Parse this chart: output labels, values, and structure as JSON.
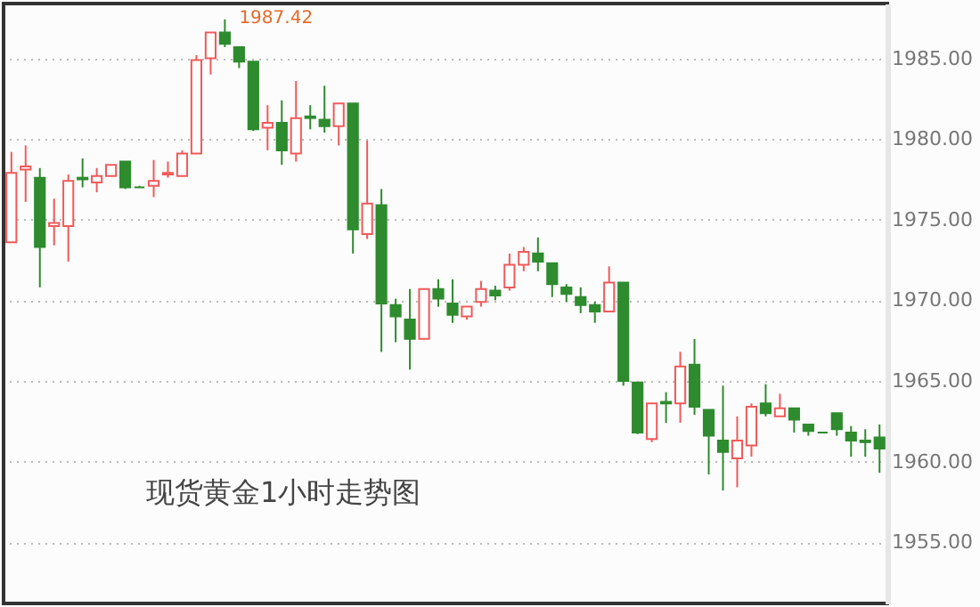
{
  "chart_data": {
    "type": "candlestick",
    "title": "现货黄金1小时走势图",
    "categories": [
      null,
      null,
      null,
      null,
      null,
      null,
      null,
      null,
      null,
      null,
      null,
      null,
      null,
      null,
      null,
      null,
      null,
      null,
      null,
      null,
      null,
      null,
      null,
      null,
      null,
      null,
      null,
      null,
      null,
      null,
      null,
      null,
      null,
      null,
      null,
      null,
      null,
      null,
      null,
      null,
      null,
      null,
      null,
      null,
      null,
      null,
      null,
      null,
      null,
      null,
      null,
      null,
      null,
      null,
      null,
      null,
      null,
      null,
      null,
      null,
      null,
      null
    ],
    "ohlc": [
      [
        1973.6,
        1979.2,
        1973.6,
        1977.9
      ],
      [
        1978.1,
        1979.6,
        1976.1,
        1978.3
      ],
      [
        1977.6,
        1978.2,
        1970.8,
        1973.3
      ],
      [
        1974.6,
        1976.3,
        1973.4,
        1974.8
      ],
      [
        1974.6,
        1977.8,
        1972.4,
        1977.4
      ],
      [
        1977.6,
        1978.8,
        1977.0,
        1977.5
      ],
      [
        1977.3,
        1978.2,
        1976.7,
        1977.7
      ],
      [
        1977.7,
        1978.4,
        1977.7,
        1978.4
      ],
      [
        1978.6,
        1978.6,
        1976.9,
        1977.0
      ],
      [
        1977.0,
        1977.1,
        1977.0,
        1977.0
      ],
      [
        1977.1,
        1978.7,
        1976.4,
        1977.4
      ],
      [
        1977.8,
        1978.6,
        1977.6,
        1977.9
      ],
      [
        1977.7,
        1979.3,
        1977.7,
        1979.1
      ],
      [
        1979.1,
        1985.2,
        1979.1,
        1984.9
      ],
      [
        1985.0,
        1986.6,
        1984.0,
        1986.6
      ],
      [
        1986.6,
        1987.42,
        1985.7,
        1985.9
      ],
      [
        1985.7,
        1985.7,
        1984.4,
        1984.8
      ],
      [
        1984.8,
        1984.8,
        1980.5,
        1980.6
      ],
      [
        1980.7,
        1982.1,
        1979.3,
        1981.0
      ],
      [
        1981.0,
        1982.4,
        1978.4,
        1979.3
      ],
      [
        1979.1,
        1983.6,
        1978.6,
        1981.3
      ],
      [
        1981.4,
        1982.1,
        1980.6,
        1981.3
      ],
      [
        1981.2,
        1983.3,
        1980.4,
        1980.8
      ],
      [
        1980.8,
        1982.2,
        1979.6,
        1982.2
      ],
      [
        1982.2,
        1982.2,
        1972.9,
        1974.4
      ],
      [
        1974.1,
        1979.9,
        1973.8,
        1976.0
      ],
      [
        1975.9,
        1976.9,
        1966.8,
        1969.8
      ],
      [
        1969.7,
        1970.1,
        1967.4,
        1969.0
      ],
      [
        1968.8,
        1970.7,
        1965.7,
        1967.6
      ],
      [
        1967.6,
        1970.7,
        1967.6,
        1970.7
      ],
      [
        1970.7,
        1971.3,
        1969.6,
        1970.1
      ],
      [
        1969.8,
        1971.3,
        1968.6,
        1969.1
      ],
      [
        1969.0,
        1969.6,
        1968.8,
        1969.6
      ],
      [
        1969.9,
        1971.2,
        1969.6,
        1970.7
      ],
      [
        1970.6,
        1970.9,
        1970.0,
        1970.3
      ],
      [
        1970.8,
        1972.9,
        1970.6,
        1972.2
      ],
      [
        1972.2,
        1973.3,
        1971.8,
        1973.0
      ],
      [
        1972.9,
        1973.9,
        1971.8,
        1972.4
      ],
      [
        1972.3,
        1972.3,
        1970.2,
        1971.0
      ],
      [
        1970.8,
        1971.0,
        1969.9,
        1970.4
      ],
      [
        1970.2,
        1970.8,
        1969.2,
        1969.7
      ],
      [
        1969.7,
        1969.9,
        1968.6,
        1969.3
      ],
      [
        1969.3,
        1972.1,
        1969.3,
        1971.1
      ],
      [
        1971.1,
        1971.1,
        1964.7,
        1965.0
      ],
      [
        1964.9,
        1964.9,
        1961.7,
        1961.8
      ],
      [
        1961.4,
        1963.6,
        1961.2,
        1963.6
      ],
      [
        1963.7,
        1964.3,
        1962.4,
        1963.6
      ],
      [
        1963.6,
        1966.8,
        1962.4,
        1965.9
      ],
      [
        1966.0,
        1967.6,
        1962.9,
        1963.4
      ],
      [
        1963.2,
        1963.2,
        1959.2,
        1961.6
      ],
      [
        1961.3,
        1964.7,
        1958.2,
        1960.6
      ],
      [
        1960.2,
        1962.8,
        1958.4,
        1961.3
      ],
      [
        1961.0,
        1963.6,
        1960.3,
        1963.4
      ],
      [
        1963.6,
        1964.8,
        1962.8,
        1963.0
      ],
      [
        1962.8,
        1964.2,
        1962.8,
        1963.3
      ],
      [
        1963.3,
        1963.3,
        1961.8,
        1962.6
      ],
      [
        1962.3,
        1962.3,
        1961.6,
        1961.9
      ],
      [
        1961.8,
        1961.8,
        1961.8,
        1961.8
      ],
      [
        1963.0,
        1963.0,
        1961.6,
        1962.0
      ],
      [
        1961.8,
        1962.2,
        1960.3,
        1961.3
      ],
      [
        1961.3,
        1962.0,
        1960.3,
        1961.2
      ],
      [
        1961.5,
        1962.3,
        1959.3,
        1960.8
      ]
    ],
    "colors": [
      "#f05a5a",
      "#f05a5a",
      "#2e8b2e",
      "#f05a5a",
      "#f05a5a",
      "#2e8b2e",
      "#f05a5a",
      "#f05a5a",
      "#2e8b2e",
      "#2e8b2e",
      "#f05a5a",
      "#f05a5a",
      "#f05a5a",
      "#f05a5a",
      "#f05a5a",
      "#2e8b2e",
      "#2e8b2e",
      "#2e8b2e",
      "#f05a5a",
      "#2e8b2e",
      "#f05a5a",
      "#2e8b2e",
      "#2e8b2e",
      "#f05a5a",
      "#2e8b2e",
      "#f05a5a",
      "#2e8b2e",
      "#2e8b2e",
      "#2e8b2e",
      "#f05a5a",
      "#2e8b2e",
      "#2e8b2e",
      "#f05a5a",
      "#f05a5a",
      "#2e8b2e",
      "#f05a5a",
      "#f05a5a",
      "#2e8b2e",
      "#2e8b2e",
      "#2e8b2e",
      "#2e8b2e",
      "#2e8b2e",
      "#f05a5a",
      "#2e8b2e",
      "#2e8b2e",
      "#f05a5a",
      "#2e8b2e",
      "#f05a5a",
      "#2e8b2e",
      "#2e8b2e",
      "#2e8b2e",
      "#f05a5a",
      "#f05a5a",
      "#2e8b2e",
      "#f05a5a",
      "#2e8b2e",
      "#2e8b2e",
      "#2e8b2e",
      "#2e8b2e",
      "#2e8b2e",
      "#2e8b2e",
      "#2e8b2e"
    ],
    "ylim": [
      1951.2,
      1988.4
    ],
    "yticks": [
      {
        "value": 1955,
        "label": "1955.00"
      },
      {
        "value": 1960,
        "label": "1960.00"
      },
      {
        "value": 1965,
        "label": "1965.00"
      },
      {
        "value": 1970,
        "label": "1970.00"
      },
      {
        "value": 1975,
        "label": "1975.00"
      },
      {
        "value": 1980,
        "label": "1980.00"
      },
      {
        "value": 1985,
        "label": "1985.00"
      }
    ],
    "grid": "y",
    "tick_labels": "y",
    "annotations": [
      "1987.42"
    ]
  }
}
